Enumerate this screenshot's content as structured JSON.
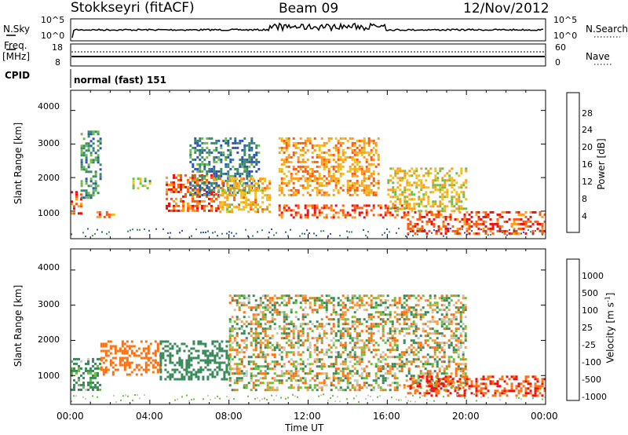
{
  "header": {
    "station": "Stokkseyri (fitACF)",
    "beam": "Beam 09",
    "date": "12/Nov/2012"
  },
  "status_panels": {
    "sky_label": "N.Sky",
    "search_label": "N.Search",
    "sky_ticks": [
      "10^5",
      "10^0"
    ],
    "search_ticks": [
      "10^5",
      "10^0"
    ],
    "freq_label": "Freq.",
    "freq_unit": "[MHz]",
    "freq_ticks": [
      "18",
      "8"
    ],
    "nave_label": "Nave",
    "nave_ticks": [
      "60",
      "0"
    ],
    "cpid_label": "CPID",
    "cpid_text": "normal (fast) 151"
  },
  "power_panel": {
    "ylabel": "Slant Range [km]",
    "yticks": [
      "4000",
      "3000",
      "2000",
      "1000"
    ],
    "colorbar_label": "Power [dB]",
    "colorbar_ticks": [
      "28",
      "24",
      "20",
      "16",
      "12",
      "8",
      "4"
    ],
    "colors": [
      "#0000ee",
      "#2d55b5",
      "#3a8a6a",
      "#6cbf4a",
      "#f0c020",
      "#ff9a1a",
      "#ff5a10",
      "#ee1010"
    ]
  },
  "velocity_panel": {
    "ylabel": "Slant Range [km]",
    "yticks": [
      "4000",
      "3000",
      "2000",
      "1000"
    ],
    "colorbar_label": "Velocity [m s",
    "colorbar_sup": "-1",
    "colorbar_suffix": "]",
    "colorbar_ticks": [
      "1000",
      "500",
      "100",
      "25",
      "-25",
      "-100",
      "-500",
      "-1000"
    ],
    "colors": [
      "#2040b0",
      "#3a7fa0",
      "#3a8a5a",
      "#68c040",
      "#c8c8c0",
      "#f0a040",
      "#ff7010",
      "#ee1010"
    ]
  },
  "xaxis": {
    "ticks": [
      "00:00",
      "04:00",
      "08:00",
      "12:00",
      "16:00",
      "20:00",
      "00:00"
    ],
    "label": "Time UT"
  },
  "chart_data": [
    {
      "type": "heatmap",
      "title": "Power",
      "ylabel": "Slant Range [km]",
      "xlabel": "Time UT",
      "xlim": [
        "00:00",
        "24:00"
      ],
      "ylim": [
        180,
        4600
      ],
      "colorbar": {
        "label": "Power [dB]",
        "ticks": [
          28,
          24,
          20,
          16,
          12,
          8,
          4
        ]
      },
      "regions": [
        {
          "x_start": 0.0,
          "x_end": 0.5,
          "range_start": 900,
          "range_end": 1600,
          "value": 26
        },
        {
          "x_start": 0.5,
          "x_end": 1.5,
          "range_start": 1400,
          "range_end": 3400,
          "value": 10
        },
        {
          "x_start": 1.3,
          "x_end": 2.3,
          "range_start": 800,
          "range_end": 1000,
          "value": 24
        },
        {
          "x_start": 3.0,
          "x_end": 4.0,
          "range_start": 1700,
          "range_end": 2000,
          "value": 14
        },
        {
          "x_start": 4.8,
          "x_end": 7.5,
          "range_start": 1000,
          "range_end": 2100,
          "value": 26
        },
        {
          "x_start": 6.0,
          "x_end": 9.5,
          "range_start": 1500,
          "range_end": 3200,
          "value": 9
        },
        {
          "x_start": 7.5,
          "x_end": 10.0,
          "range_start": 1000,
          "range_end": 2000,
          "value": 20
        },
        {
          "x_start": 10.5,
          "x_end": 15.5,
          "range_start": 1500,
          "range_end": 3200,
          "value": 22
        },
        {
          "x_start": 10.5,
          "x_end": 17.0,
          "range_start": 800,
          "range_end": 1200,
          "value": 27
        },
        {
          "x_start": 16.0,
          "x_end": 20.0,
          "range_start": 1000,
          "range_end": 2300,
          "value": 18
        },
        {
          "x_start": 17.0,
          "x_end": 24.0,
          "range_start": 350,
          "range_end": 1000,
          "value": 27
        }
      ]
    },
    {
      "type": "heatmap",
      "title": "Velocity",
      "ylabel": "Slant Range [km]",
      "xlabel": "Time UT",
      "xlim": [
        "00:00",
        "24:00"
      ],
      "ylim": [
        180,
        4600
      ],
      "colorbar": {
        "label": "Velocity [m s-1]",
        "ticks": [
          1000,
          500,
          100,
          25,
          -25,
          -100,
          -500,
          -1000
        ]
      },
      "regions": [
        {
          "x_start": 0.0,
          "x_end": 1.5,
          "range_start": 600,
          "range_end": 1500,
          "value": 200
        },
        {
          "x_start": 1.5,
          "x_end": 4.5,
          "range_start": 1000,
          "range_end": 2000,
          "value": -300
        },
        {
          "x_start": 4.5,
          "x_end": 8.0,
          "range_start": 900,
          "range_end": 2000,
          "value": 300
        },
        {
          "x_start": 8.0,
          "x_end": 20.0,
          "range_start": 600,
          "range_end": 3300,
          "value": 0
        },
        {
          "x_start": 17.0,
          "x_end": 24.0,
          "range_start": 400,
          "range_end": 1000,
          "value": -500
        }
      ]
    }
  ]
}
